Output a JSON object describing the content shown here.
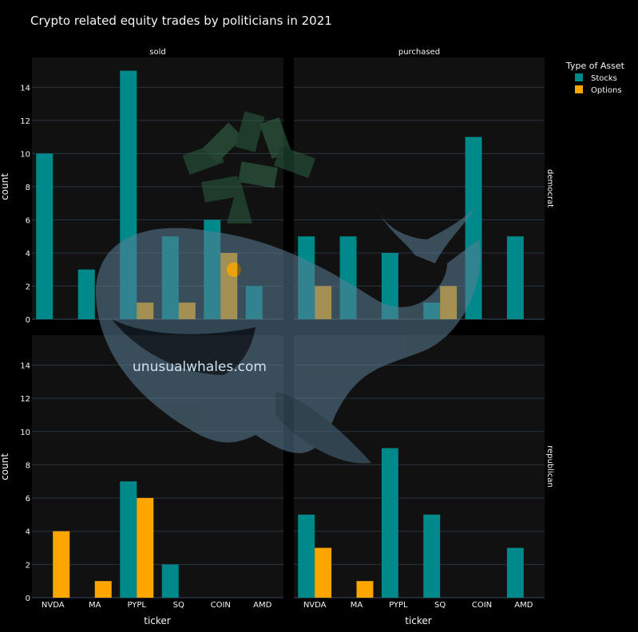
{
  "chart_data": {
    "type": "bar",
    "title": "Crypto related equity trades by politicians in 2021",
    "categories": [
      "NVDA",
      "MA",
      "PYPL",
      "SQ",
      "COIN",
      "AMD"
    ],
    "xlabel": "ticker",
    "ylabel": "count",
    "ylim": [
      0,
      15.8
    ],
    "yticks": [
      0,
      2,
      4,
      6,
      8,
      10,
      12,
      14
    ],
    "grid": true,
    "columns": [
      "sold",
      "purchased"
    ],
    "rows": [
      "democrat",
      "republican"
    ],
    "legend": {
      "title": "Type of Asset",
      "position": "top-right",
      "items": [
        {
          "name": "Stocks",
          "color": "#00898a"
        },
        {
          "name": "Options",
          "color": "#ffa500"
        }
      ]
    },
    "panels": [
      {
        "row": "democrat",
        "column": "sold",
        "series": [
          {
            "name": "Stocks",
            "values": [
              10,
              3,
              15,
              5,
              6,
              2
            ]
          },
          {
            "name": "Options",
            "values": [
              null,
              null,
              1,
              1,
              4,
              null
            ]
          }
        ]
      },
      {
        "row": "democrat",
        "column": "purchased",
        "series": [
          {
            "name": "Stocks",
            "values": [
              5,
              5,
              4,
              1,
              11,
              5
            ]
          },
          {
            "name": "Options",
            "values": [
              2,
              null,
              null,
              2,
              null,
              null
            ]
          }
        ]
      },
      {
        "row": "republican",
        "column": "sold",
        "series": [
          {
            "name": "Stocks",
            "values": [
              null,
              null,
              7,
              2,
              null,
              null
            ]
          },
          {
            "name": "Options",
            "values": [
              4,
              1,
              6,
              null,
              null,
              null
            ]
          }
        ]
      },
      {
        "row": "republican",
        "column": "purchased",
        "series": [
          {
            "name": "Stocks",
            "values": [
              5,
              null,
              9,
              5,
              null,
              3
            ]
          },
          {
            "name": "Options",
            "values": [
              3,
              1,
              null,
              null,
              null,
              null
            ]
          }
        ]
      }
    ]
  },
  "watermark": {
    "text": "unusualwhales.com"
  },
  "colors": {
    "background": "#000000",
    "plot_bg": "#111111",
    "grid": "#283442"
  }
}
